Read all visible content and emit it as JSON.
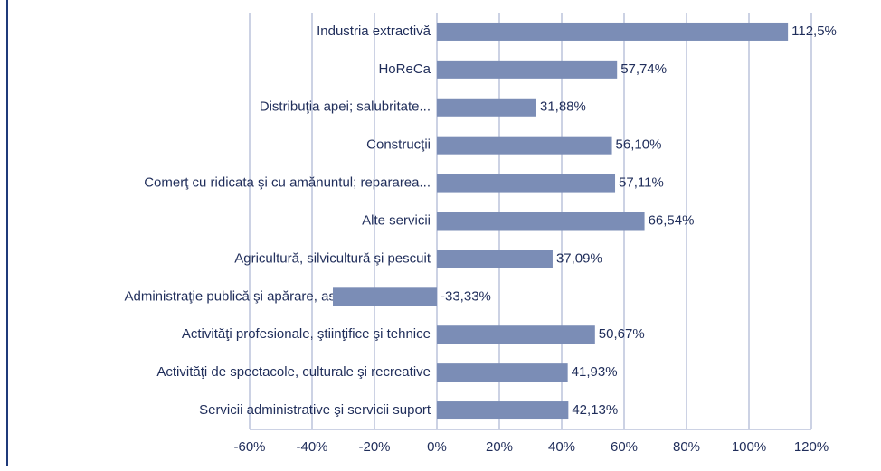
{
  "chart_data": {
    "type": "bar",
    "orientation": "horizontal",
    "categories": [
      "Industria extractivă",
      "HoReCa",
      "Distribuţia apei; salubritate...",
      "Construcţii",
      "Comerţ cu ridicata şi cu amănuntul; repararea...",
      "Alte servicii",
      "Agricultură, silvicultură şi pescuit",
      "Administraţie publică şi apărare, asigurări sociale...",
      "Activităţi profesionale, ştiinţifice şi tehnice",
      "Activităţi de spectacole, culturale şi recreative",
      "Servicii administrative şi servicii suport"
    ],
    "values": [
      112.5,
      57.74,
      31.88,
      56.1,
      57.11,
      66.54,
      37.09,
      -33.33,
      50.67,
      41.93,
      42.13
    ],
    "value_labels": [
      "112,5%",
      "57,74%",
      "31,88%",
      "56,10%",
      "57,11%",
      "66,54%",
      "37,09%",
      "-33,33%",
      "50,67%",
      "41,93%",
      "42,13%"
    ],
    "color": "#7b8db6",
    "xlim": [
      -60,
      120
    ],
    "xticks": [
      {
        "value": -60,
        "label": "-60%"
      },
      {
        "value": -40,
        "label": "-40%"
      },
      {
        "value": -20,
        "label": "-20%"
      },
      {
        "value": 0,
        "label": "0%"
      },
      {
        "value": 20,
        "label": "20%"
      },
      {
        "value": 40,
        "label": "40%"
      },
      {
        "value": 60,
        "label": "60%"
      },
      {
        "value": 80,
        "label": "80%"
      },
      {
        "value": 100,
        "label": "100%"
      },
      {
        "value": 120,
        "label": "120%"
      }
    ],
    "grid": true
  }
}
